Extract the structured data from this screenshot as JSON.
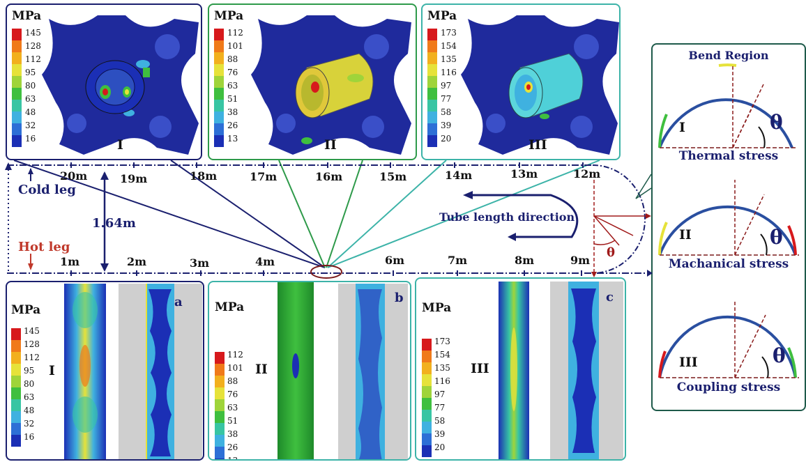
{
  "unit": "MPa",
  "colormap": [
    "#d7191c",
    "#f07a1a",
    "#f2b01e",
    "#e6e23a",
    "#9fd43a",
    "#3fbf3f",
    "#38c5a3",
    "#3fb1e0",
    "#2d6fd6",
    "#1b2fb5"
  ],
  "scales": {
    "I": [
      "145",
      "128",
      "112",
      "95",
      "80",
      "63",
      "48",
      "32",
      "16"
    ],
    "II": [
      "112",
      "101",
      "88",
      "76",
      "63",
      "51",
      "38",
      "26",
      "13"
    ],
    "III": [
      "173",
      "154",
      "135",
      "116",
      "97",
      "77",
      "58",
      "39",
      "20"
    ]
  },
  "top_panels": [
    {
      "roman": "I",
      "scale": "I"
    },
    {
      "roman": "II",
      "scale": "II"
    },
    {
      "roman": "III",
      "scale": "III"
    }
  ],
  "bottom_panels": [
    {
      "roman": "I",
      "scale": "I",
      "letter": "a"
    },
    {
      "roman": "II",
      "scale": "II",
      "letter": "b"
    },
    {
      "roman": "III",
      "scale": "III",
      "letter": "c"
    }
  ],
  "right_panel": {
    "title": "Bend Region",
    "theta": "θ",
    "items": [
      {
        "roman": "I",
        "caption": "Thermal stress"
      },
      {
        "roman": "II",
        "caption": "Machanical stress"
      },
      {
        "roman": "III",
        "caption": "Coupling stress"
      }
    ]
  },
  "tube": {
    "upper_marks": [
      "20m",
      "19m",
      "18m",
      "17m",
      "16m",
      "15m",
      "14m",
      "13m",
      "12m"
    ],
    "lower_marks": [
      "1m",
      "2m",
      "3m",
      "4m",
      "6m",
      "7m",
      "8m",
      "9m"
    ],
    "cold_leg": "Cold leg",
    "hot_leg": "Hot leg",
    "spacing": "1.64m",
    "direction": "Tube length direction",
    "theta": "θ"
  },
  "colors": {
    "navy": "#1a1f6e",
    "green": "#2e9a4a",
    "teal": "#3cb3a8",
    "dark_teal": "#1e5a4a",
    "red": "#c0392b"
  }
}
